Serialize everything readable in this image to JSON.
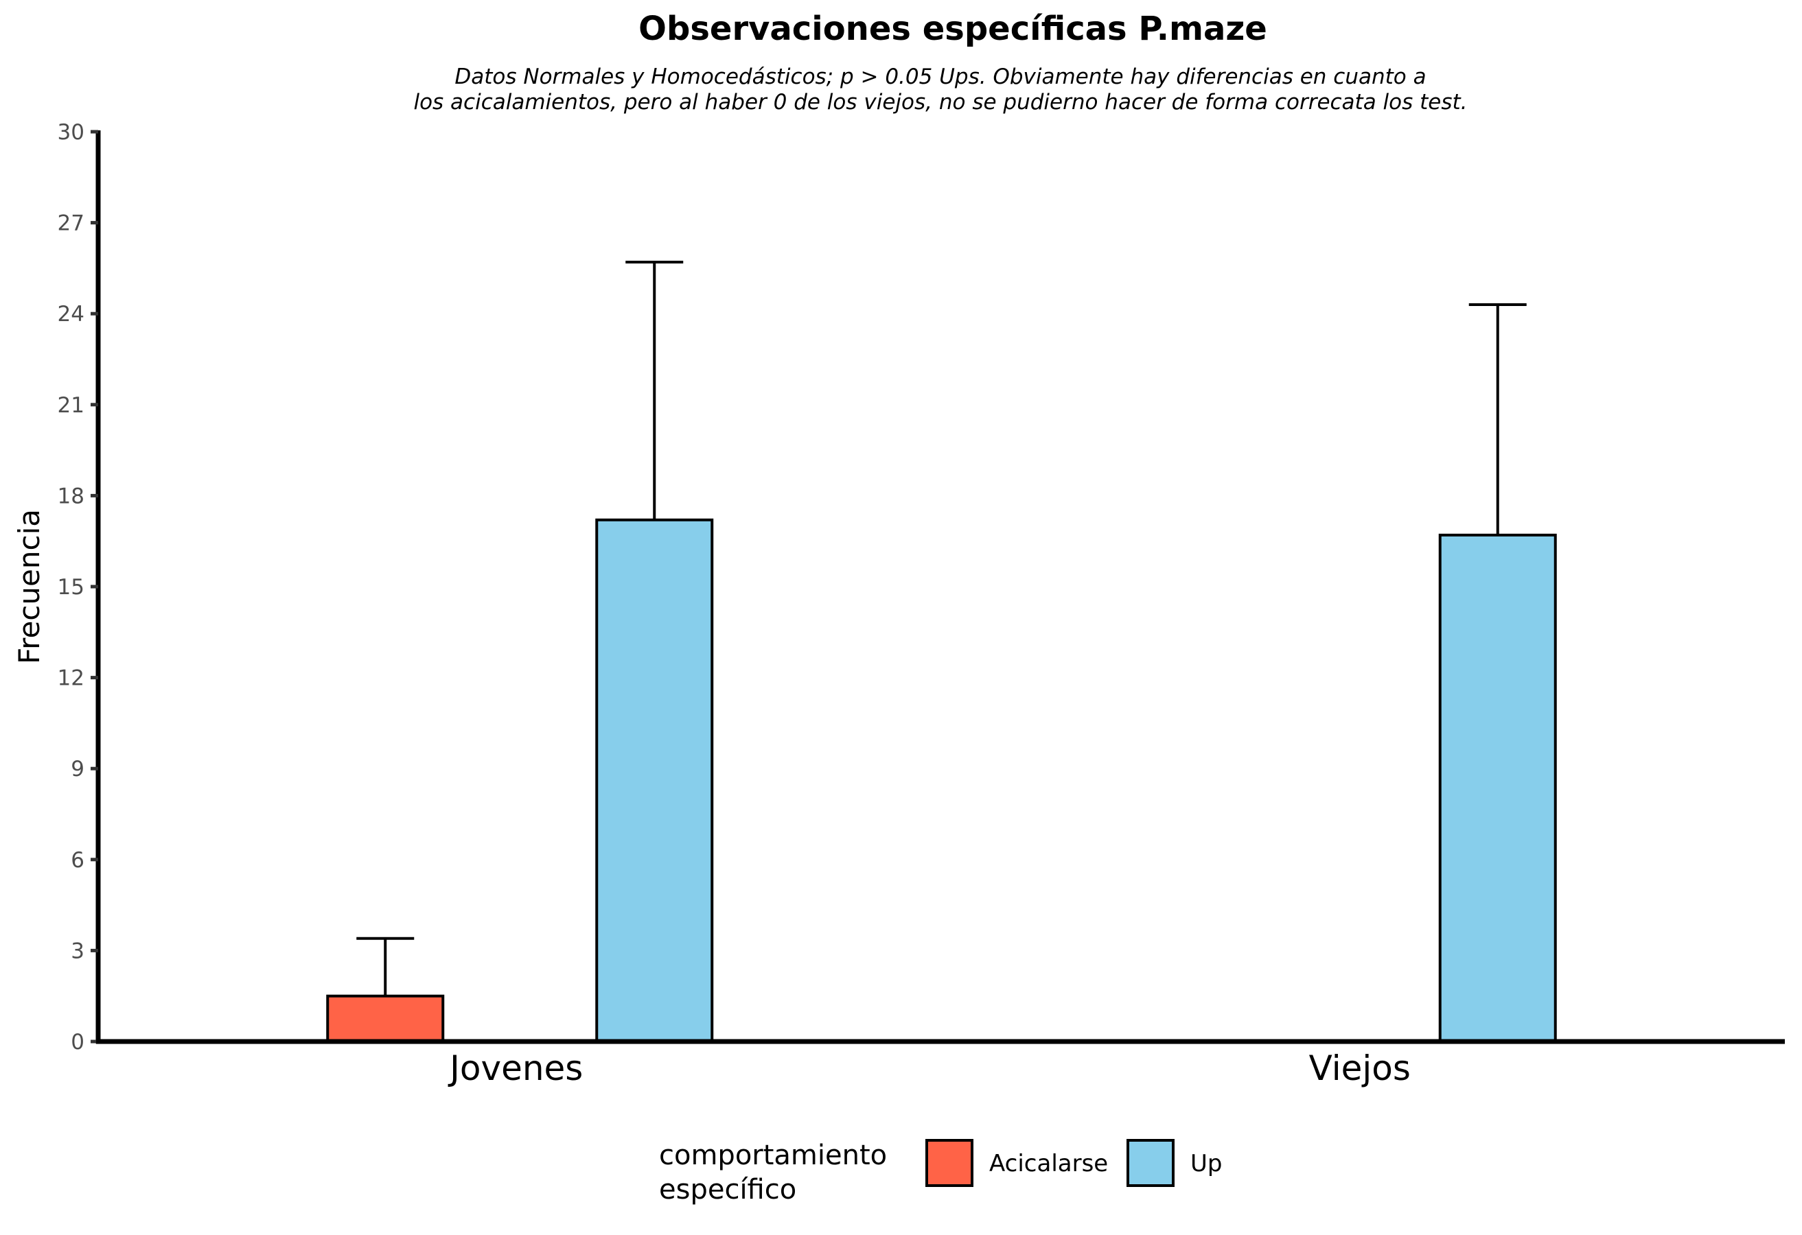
{
  "chart_data": {
    "type": "bar",
    "title": "Observaciones específicas P.maze",
    "subtitle_lines": [
      "Datos Normales y Homocedásticos; p > 0.05 Ups. Obviamente hay diferencias en cuanto a",
      "los acicalamientos, pero al haber 0 de los viejos, no se pudierno hacer de forma correcata los test."
    ],
    "xlabel": "",
    "ylabel": "Frecuencia",
    "ylim": [
      0,
      30
    ],
    "yticks": [
      0,
      3,
      6,
      9,
      12,
      15,
      18,
      21,
      24,
      27,
      30
    ],
    "categories": [
      "Jovenes",
      "Viejos"
    ],
    "series": [
      {
        "name": "Acicalarse",
        "color": "#FF6347",
        "values": [
          1.5,
          0
        ],
        "error_upper": [
          3.4,
          null
        ]
      },
      {
        "name": "Up",
        "color": "#87CEEB",
        "values": [
          17.2,
          16.7
        ],
        "error_upper": [
          25.7,
          24.3
        ]
      }
    ],
    "legend": {
      "title_lines": [
        "comportamiento",
        "específico"
      ],
      "position": "bottom"
    },
    "grid": false
  }
}
